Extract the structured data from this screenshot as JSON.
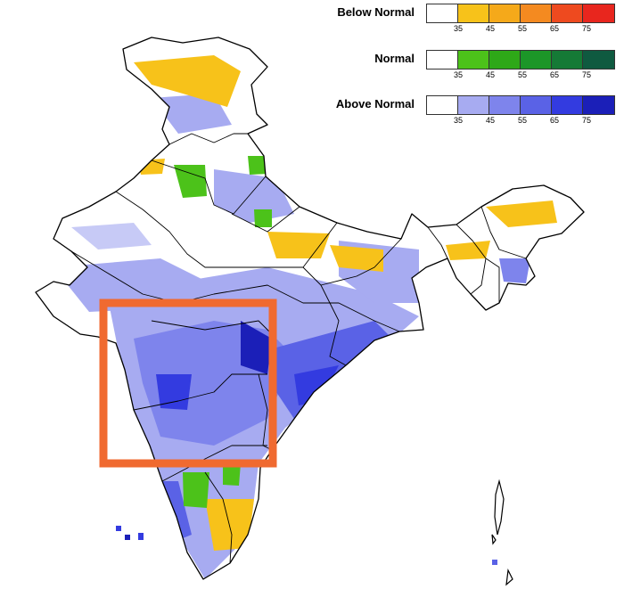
{
  "legend": {
    "groups": [
      {
        "title": "Below Normal",
        "colors": [
          "#ffffff",
          "#f7c21a",
          "#f5a91a",
          "#f48a20",
          "#ee4a1f",
          "#e8261e"
        ],
        "ticks": [
          "35",
          "45",
          "55",
          "65",
          "75"
        ]
      },
      {
        "title": "Normal",
        "colors": [
          "#ffffff",
          "#4cc21a",
          "#2ea818",
          "#1c9628",
          "#157a36",
          "#0f5a40"
        ],
        "ticks": [
          "35",
          "45",
          "55",
          "65",
          "75"
        ]
      },
      {
        "title": "Above Normal",
        "colors": [
          "#ffffff",
          "#a7abf1",
          "#7e84ec",
          "#5a62e6",
          "#333be0",
          "#1b1fb8"
        ],
        "ticks": [
          "35",
          "45",
          "55",
          "65",
          "75"
        ]
      }
    ]
  },
  "map": {
    "highlight_box_color": "#f06a30",
    "border_color": "#000000"
  }
}
